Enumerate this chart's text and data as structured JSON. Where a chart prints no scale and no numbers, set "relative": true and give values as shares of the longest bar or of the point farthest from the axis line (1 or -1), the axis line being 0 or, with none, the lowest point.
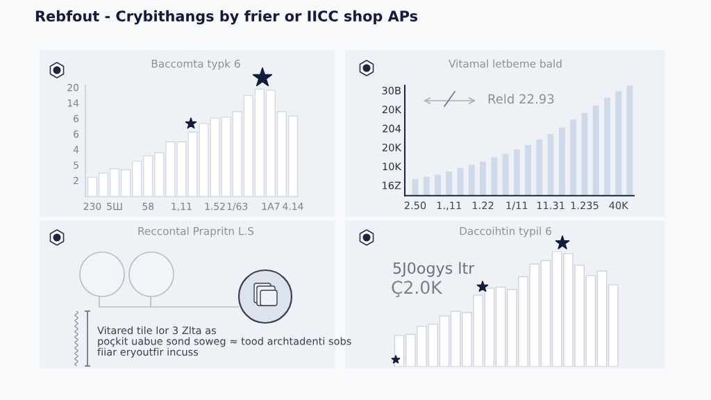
{
  "chart_data": [
    {
      "type": "bar",
      "title": "Rebfout - Crybithangs by frier or IICC shop APs",
      "subtitle": "Baccomta typk 6",
      "relative": true,
      "categories": [
        "230",
        null,
        "5Ш",
        null,
        null,
        "58",
        null,
        null,
        "1,11",
        null,
        null,
        "1.52",
        null,
        "1/63",
        null,
        null,
        "1A7",
        null,
        "4.14"
      ],
      "values": [
        0.18,
        0.22,
        0.26,
        0.25,
        0.33,
        0.38,
        0.41,
        0.51,
        0.51,
        0.6,
        0.68,
        0.73,
        0.74,
        0.79,
        0.94,
        1.0,
        0.99,
        0.79,
        0.75
      ],
      "color": "#ffffff",
      "annotations": [
        "20",
        "14",
        "6",
        "6",
        "4",
        "5",
        "2"
      ]
    },
    {
      "type": "bar",
      "subtitle": "Vitamal letbeme bald",
      "relative": true,
      "categories": [
        "2.50",
        null,
        null,
        "1.,11",
        null,
        null,
        "1.22",
        null,
        null,
        "1/11",
        null,
        null,
        "11.31",
        null,
        null,
        "1.235",
        null,
        null,
        "40K",
        null
      ],
      "values": [
        0.15,
        0.17,
        0.19,
        0.22,
        0.25,
        0.28,
        0.31,
        0.35,
        0.38,
        0.42,
        0.46,
        0.51,
        0.56,
        0.62,
        0.69,
        0.75,
        0.82,
        0.89,
        0.95,
        1.0
      ],
      "color": "#cfdae8",
      "annotations": [
        "30B",
        "20K",
        "204",
        "20K",
        "10K",
        "16Z",
        "Reld 22.93"
      ]
    },
    {
      "type": "other",
      "subtitle": "Reccontal Prapritn L.S",
      "annotations": [
        "Vitared tile lor 3 Zlta as",
        "poçkit uabue sond soweg ≈ tood archtadenti sobs",
        "fiiar eryoutfir incuss"
      ]
    },
    {
      "type": "bar",
      "subtitle": "Daccoihtin typil 6",
      "relative": true,
      "categories": [
        null,
        null,
        null,
        null,
        null,
        null,
        null,
        null,
        null,
        null,
        null,
        null,
        null,
        null,
        null,
        null,
        null,
        null,
        null,
        null
      ],
      "values": [
        0.27,
        0.28,
        0.35,
        0.37,
        0.44,
        0.48,
        0.47,
        0.62,
        0.68,
        0.69,
        0.67,
        0.78,
        0.89,
        0.92,
        1.0,
        0.98,
        0.88,
        0.79,
        0.83,
        0.71
      ],
      "color": "#ffffff",
      "annotations": [
        "5J0ogys ltr",
        "Ç2.0K"
      ]
    }
  ]
}
